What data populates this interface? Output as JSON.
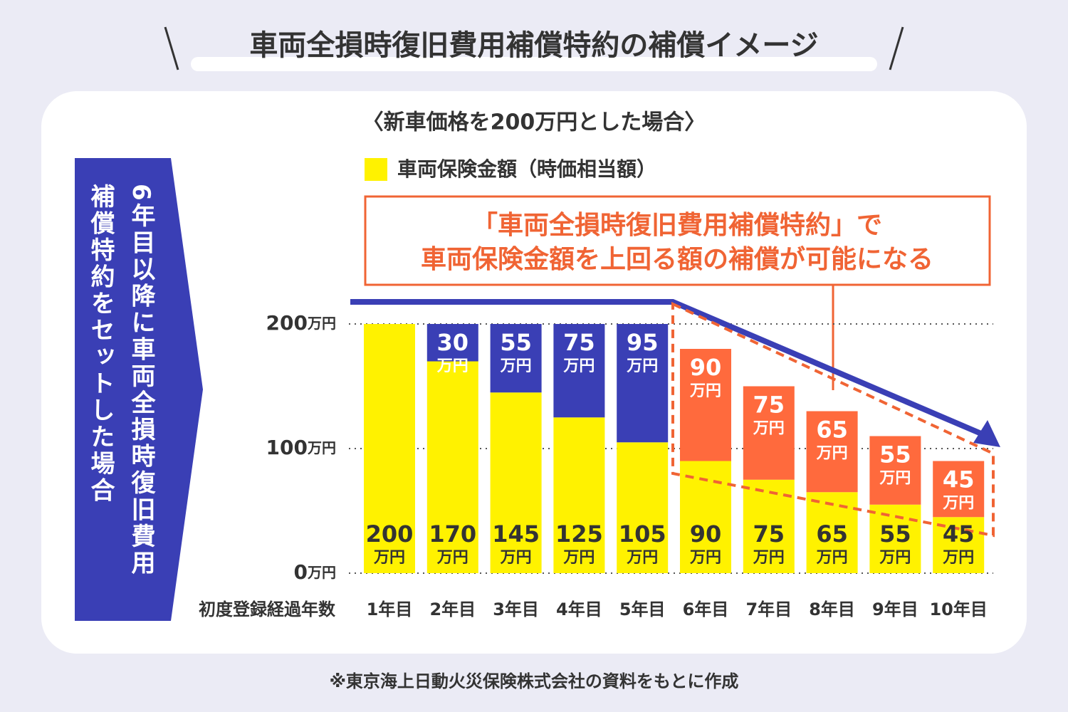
{
  "chart_data": {
    "type": "bar",
    "stacked": true,
    "title": "車両全損時復旧費用補償特約の補償イメージ",
    "subtitle": "〈新車価格を200万円とした場合〉",
    "side_note": "6年目以降に車両全損時復旧費用補償特約をセットした場合",
    "callout": [
      "「車両全損時復旧費用補償特約」で",
      "車両保険金額を上回る額の補償が可能になる"
    ],
    "x_label": "初度登録経過年数",
    "footnote": "※東京海上日動火災保険株式会社の資料をもとに作成",
    "categories": [
      "1年目",
      "2年目",
      "3年目",
      "4年目",
      "5年目",
      "6年目",
      "7年目",
      "8年目",
      "9年目",
      "10年目"
    ],
    "series": [
      {
        "name": "車両保険金額（時価相当額）",
        "color": "#fff200",
        "values": [
          200,
          170,
          145,
          125,
          105,
          90,
          75,
          65,
          55,
          45
        ],
        "value_labels": [
          "200万円",
          "170万円",
          "145万円",
          "125万円",
          "105万円",
          "90万円",
          "75万円",
          "65万円",
          "55万円",
          "45万円"
        ]
      },
      {
        "color": "#3a3fb5",
        "values": [
          null,
          30,
          55,
          75,
          95,
          null,
          null,
          null,
          null,
          null
        ],
        "value_labels": [
          null,
          "30万円",
          "55万円",
          "75万円",
          "95万円",
          null,
          null,
          null,
          null,
          null
        ]
      },
      {
        "color": "#ff6a3d",
        "values": [
          null,
          null,
          null,
          null,
          null,
          90,
          75,
          65,
          55,
          45
        ],
        "value_labels": [
          null,
          null,
          null,
          null,
          null,
          "90万円",
          "75万円",
          "65万円",
          "55万円",
          "45万円"
        ]
      }
    ],
    "ylim": [
      0,
      200
    ],
    "yticks": [
      {
        "value": 0,
        "label": "0万円"
      },
      {
        "value": 100,
        "label": "100万円"
      },
      {
        "value": 200,
        "label": "200万円"
      }
    ],
    "grid": true
  }
}
